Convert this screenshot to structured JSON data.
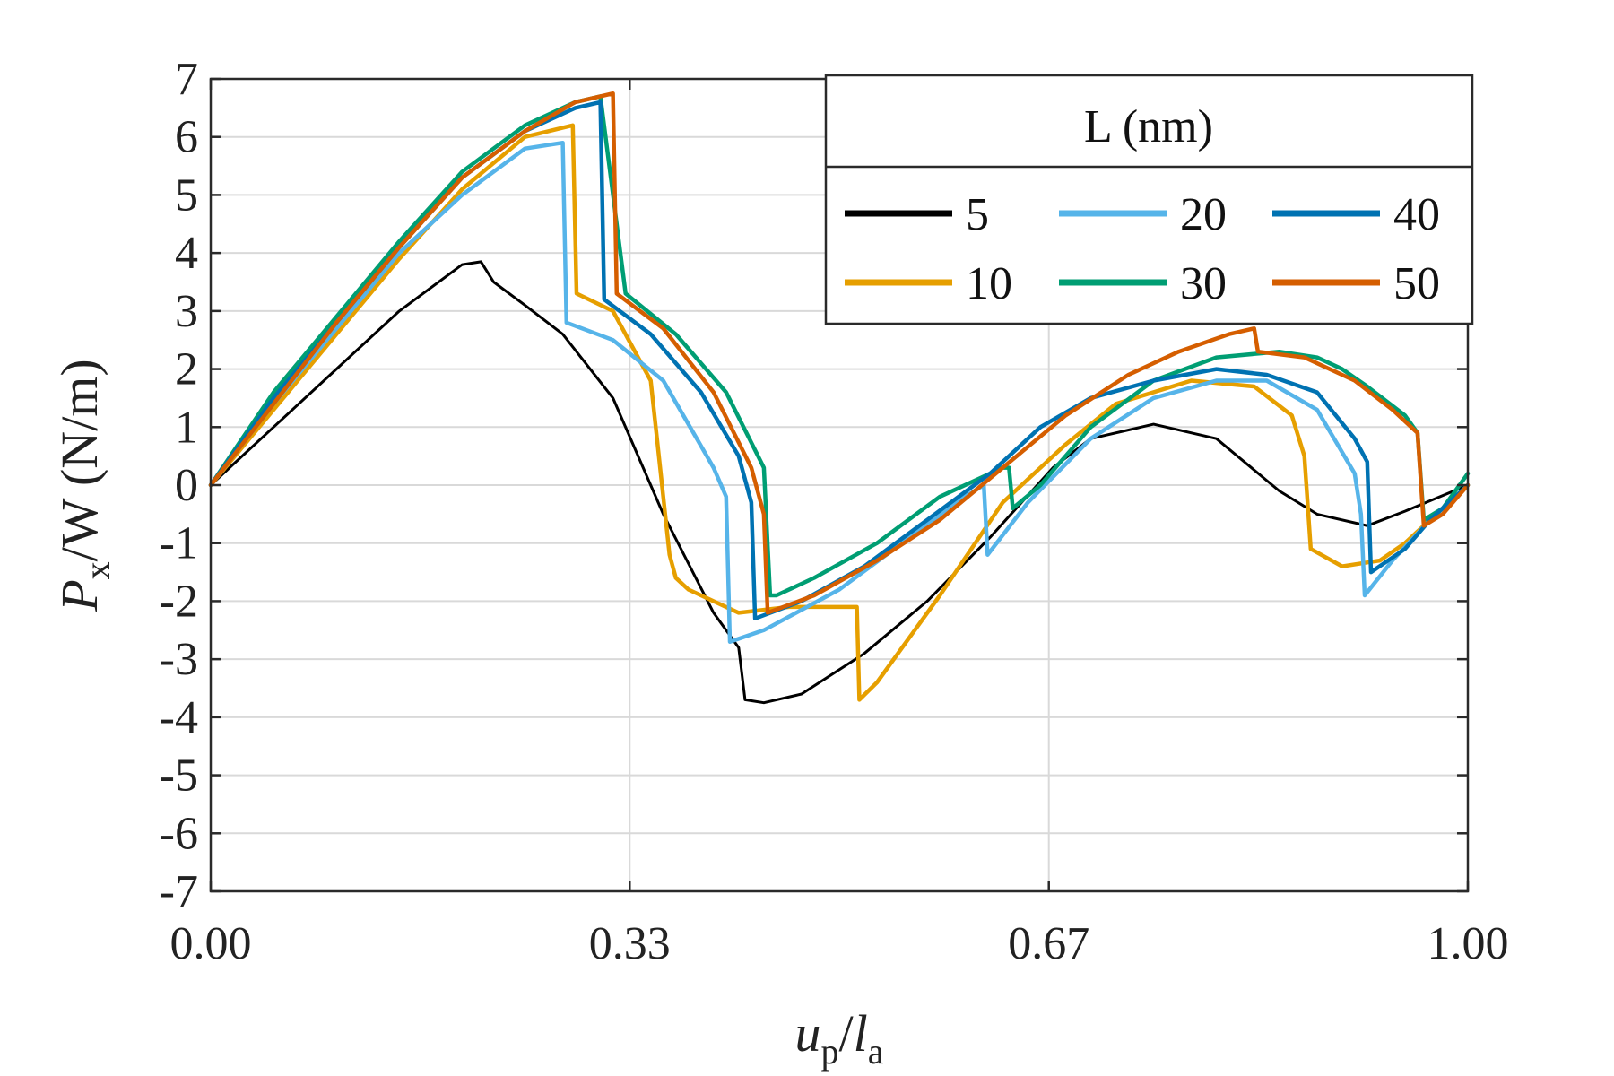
{
  "chart_data": {
    "type": "line",
    "title": "",
    "xlabel": {
      "main": "u",
      "sub": "p",
      "sep": "/",
      "main2": "l",
      "sub2": "a"
    },
    "ylabel": {
      "main": "P",
      "sub": "x",
      "rest": "/W (N/m)"
    },
    "xlim": [
      0,
      1
    ],
    "ylim": [
      -7,
      7
    ],
    "grid": true,
    "x_ticks": [
      0,
      0.3333,
      0.6667,
      1.0
    ],
    "x_tick_labels": [
      "0.00",
      "0.33",
      "0.67",
      "1.00"
    ],
    "y_ticks": [
      -7,
      -6,
      -5,
      -4,
      -3,
      -2,
      -1,
      0,
      1,
      2,
      3,
      4,
      5,
      6,
      7
    ],
    "y_tick_labels": [
      "-7",
      "-6",
      "-5",
      "-4",
      "-3",
      "-2",
      "-1",
      "0",
      "1",
      "2",
      "3",
      "4",
      "5",
      "6",
      "7"
    ],
    "legend": {
      "title": "L (nm)",
      "placement": "top-right",
      "columns": 3
    },
    "series": [
      {
        "name": "5",
        "color": "#000000",
        "x": [
          0,
          0.05,
          0.1,
          0.15,
          0.2,
          0.215,
          0.225,
          0.25,
          0.28,
          0.32,
          0.36,
          0.4,
          0.42,
          0.425,
          0.44,
          0.47,
          0.52,
          0.57,
          0.62,
          0.67,
          0.7,
          0.75,
          0.8,
          0.85,
          0.88,
          0.92,
          0.95,
          1.0
        ],
        "y": [
          0,
          1.0,
          2.0,
          3.0,
          3.8,
          3.85,
          3.5,
          3.1,
          2.6,
          1.5,
          -0.5,
          -2.2,
          -2.8,
          -3.7,
          -3.75,
          -3.6,
          -2.9,
          -2.0,
          -0.9,
          0.3,
          0.8,
          1.05,
          0.8,
          -0.1,
          -0.5,
          -0.7,
          -0.45,
          0
        ]
      },
      {
        "name": "10",
        "color": "#E69F00",
        "x": [
          0,
          0.05,
          0.1,
          0.15,
          0.2,
          0.25,
          0.288,
          0.291,
          0.32,
          0.35,
          0.365,
          0.37,
          0.38,
          0.42,
          0.46,
          0.514,
          0.516,
          0.53,
          0.58,
          0.63,
          0.68,
          0.72,
          0.78,
          0.83,
          0.86,
          0.87,
          0.875,
          0.9,
          0.93,
          0.95,
          0.97,
          1.0
        ],
        "y": [
          0,
          1.3,
          2.6,
          3.9,
          5.1,
          6.0,
          6.2,
          3.3,
          3.0,
          1.8,
          -1.2,
          -1.6,
          -1.8,
          -2.2,
          -2.1,
          -2.1,
          -3.7,
          -3.4,
          -1.9,
          -0.3,
          0.7,
          1.4,
          1.8,
          1.7,
          1.2,
          0.5,
          -1.1,
          -1.4,
          -1.3,
          -1.0,
          -0.6,
          0
        ]
      },
      {
        "name": "20",
        "color": "#56B4E9",
        "x": [
          0,
          0.05,
          0.1,
          0.15,
          0.2,
          0.25,
          0.28,
          0.283,
          0.32,
          0.36,
          0.4,
          0.41,
          0.413,
          0.44,
          0.5,
          0.55,
          0.6,
          0.615,
          0.618,
          0.65,
          0.7,
          0.75,
          0.8,
          0.84,
          0.88,
          0.91,
          0.915,
          0.918,
          0.94,
          0.97,
          1.0
        ],
        "y": [
          0,
          1.4,
          2.7,
          4.0,
          5.0,
          5.8,
          5.9,
          2.8,
          2.5,
          1.8,
          0.3,
          -0.2,
          -2.7,
          -2.5,
          -1.8,
          -1.0,
          -0.2,
          0.0,
          -1.2,
          -0.3,
          0.8,
          1.5,
          1.8,
          1.8,
          1.3,
          0.2,
          -0.5,
          -1.9,
          -1.3,
          -0.6,
          0
        ]
      },
      {
        "name": "30",
        "color": "#009E73",
        "x": [
          0,
          0.05,
          0.1,
          0.15,
          0.2,
          0.25,
          0.29,
          0.31,
          0.33,
          0.37,
          0.41,
          0.44,
          0.445,
          0.45,
          0.48,
          0.53,
          0.58,
          0.63,
          0.635,
          0.638,
          0.66,
          0.7,
          0.75,
          0.8,
          0.85,
          0.88,
          0.9,
          0.92,
          0.95,
          0.96,
          0.965,
          0.98,
          1.0
        ],
        "y": [
          0,
          1.6,
          2.9,
          4.2,
          5.4,
          6.2,
          6.6,
          6.7,
          3.3,
          2.6,
          1.6,
          0.3,
          -1.9,
          -1.9,
          -1.6,
          -1.0,
          -0.2,
          0.3,
          0.3,
          -0.4,
          0.0,
          1.0,
          1.8,
          2.2,
          2.3,
          2.2,
          2.0,
          1.7,
          1.2,
          0.9,
          -0.6,
          -0.4,
          0.2
        ]
      },
      {
        "name": "40",
        "color": "#0072B2",
        "x": [
          0,
          0.05,
          0.1,
          0.15,
          0.2,
          0.25,
          0.29,
          0.31,
          0.313,
          0.35,
          0.39,
          0.42,
          0.43,
          0.433,
          0.47,
          0.52,
          0.57,
          0.62,
          0.66,
          0.7,
          0.75,
          0.8,
          0.84,
          0.88,
          0.91,
          0.92,
          0.923,
          0.95,
          0.97,
          1.0
        ],
        "y": [
          0,
          1.5,
          2.8,
          4.1,
          5.3,
          6.1,
          6.5,
          6.6,
          3.2,
          2.6,
          1.6,
          0.5,
          -0.3,
          -2.3,
          -2.0,
          -1.4,
          -0.6,
          0.2,
          1.0,
          1.5,
          1.8,
          2.0,
          1.9,
          1.6,
          0.8,
          0.4,
          -1.5,
          -1.1,
          -0.6,
          0
        ]
      },
      {
        "name": "50",
        "color": "#D55E00",
        "x": [
          0,
          0.05,
          0.1,
          0.15,
          0.2,
          0.25,
          0.29,
          0.32,
          0.323,
          0.36,
          0.4,
          0.43,
          0.44,
          0.443,
          0.48,
          0.53,
          0.58,
          0.63,
          0.68,
          0.73,
          0.77,
          0.81,
          0.83,
          0.833,
          0.87,
          0.91,
          0.94,
          0.96,
          0.965,
          0.98,
          1.0
        ],
        "y": [
          0,
          1.4,
          2.8,
          4.1,
          5.3,
          6.1,
          6.6,
          6.75,
          3.3,
          2.7,
          1.6,
          0.3,
          -0.5,
          -2.2,
          -1.9,
          -1.3,
          -0.6,
          0.3,
          1.2,
          1.9,
          2.3,
          2.6,
          2.7,
          2.3,
          2.2,
          1.8,
          1.3,
          0.9,
          -0.7,
          -0.5,
          0
        ]
      }
    ]
  }
}
